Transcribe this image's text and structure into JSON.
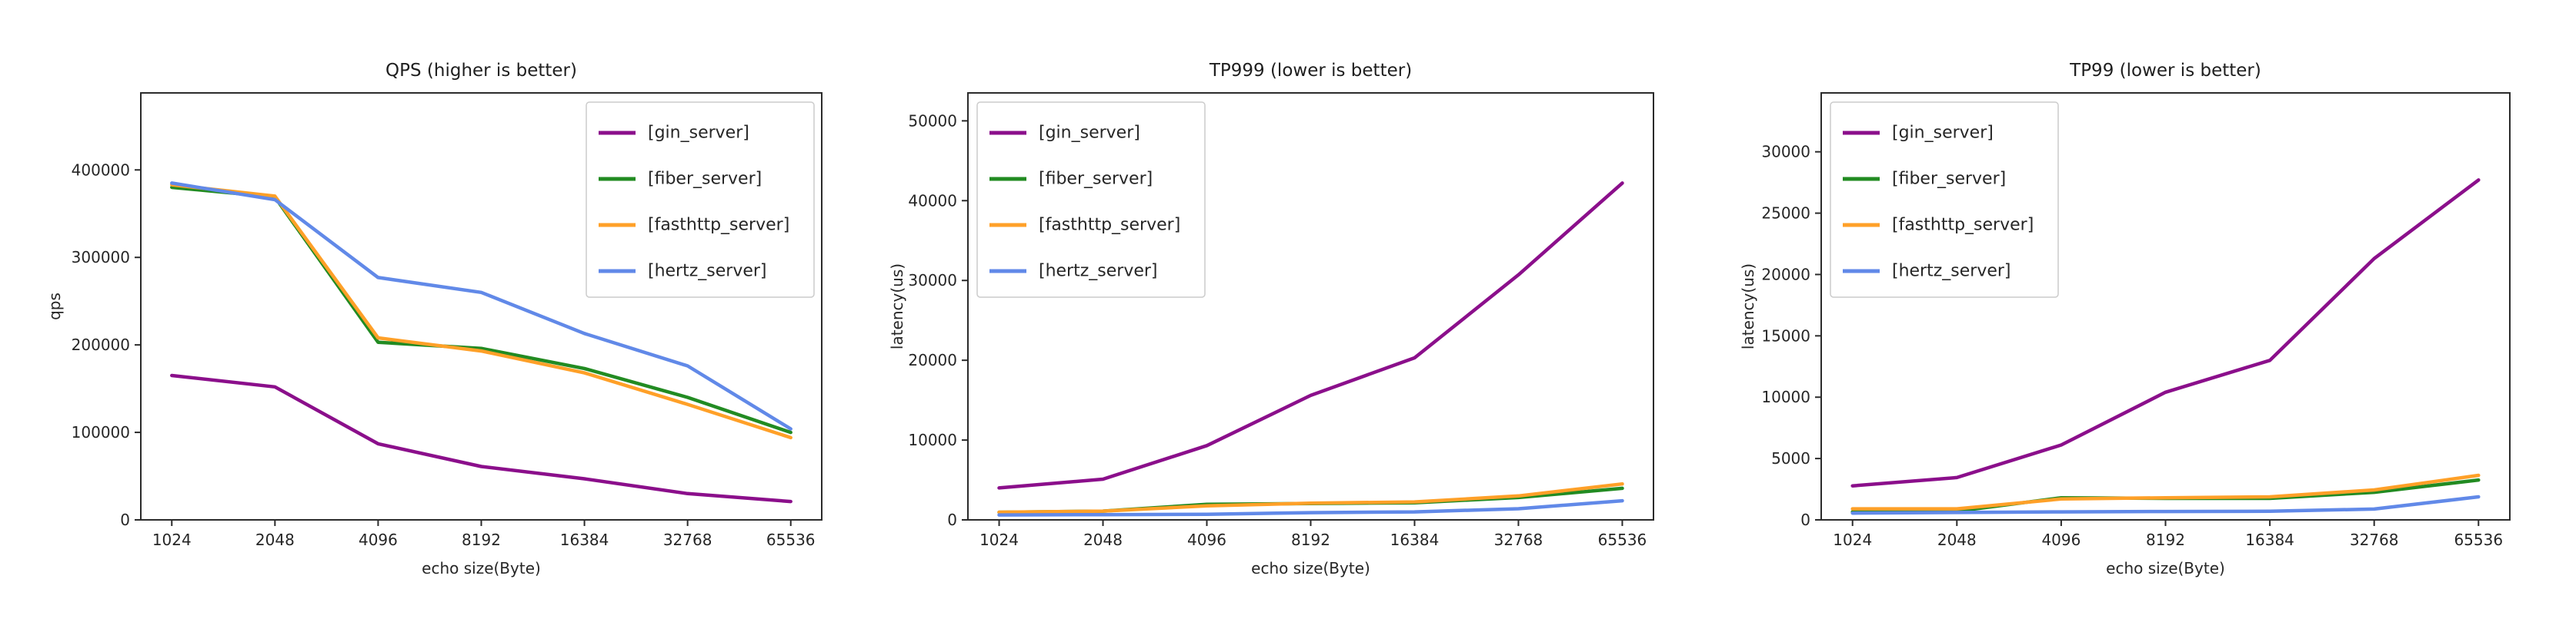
{
  "palette": {
    "gin_server": "#8B0F8B",
    "fiber_server": "#228B22",
    "fasthttp_server": "#FFA028",
    "hertz_server": "#6189E8",
    "spine": "#2b2b2b",
    "text": "#262626",
    "legend_border": "#cccccc",
    "background": "#ffffff"
  },
  "chart_data": [
    {
      "type": "line",
      "title": "QPS (higher is better)",
      "xlabel": "echo size(Byte)",
      "ylabel": "qps",
      "x_tick_labels": [
        "1024",
        "2048",
        "4096",
        "8192",
        "16384",
        "32768",
        "65536"
      ],
      "yticks": [
        0,
        100000,
        200000,
        300000,
        400000
      ],
      "ylim": [
        0,
        488000
      ],
      "grid": false,
      "legend_position": "top-right",
      "series": [
        {
          "name": "[gin_server]",
          "color_key": "gin_server",
          "values": [
            165000,
            152000,
            87000,
            61000,
            47000,
            30000,
            21000
          ]
        },
        {
          "name": "[fiber_server]",
          "color_key": "fiber_server",
          "values": [
            380000,
            369000,
            203000,
            196000,
            173000,
            140000,
            100000
          ]
        },
        {
          "name": "[fasthttp_server]",
          "color_key": "fasthttp_server",
          "values": [
            383000,
            370000,
            208000,
            193000,
            168000,
            132000,
            94000
          ]
        },
        {
          "name": "[hertz_server]",
          "color_key": "hertz_server",
          "values": [
            385000,
            366000,
            277000,
            260000,
            213000,
            176000,
            104000
          ]
        }
      ]
    },
    {
      "type": "line",
      "title": "TP999 (lower is better)",
      "xlabel": "echo size(Byte)",
      "ylabel": "latency(us)",
      "x_tick_labels": [
        "1024",
        "2048",
        "4096",
        "8192",
        "16384",
        "32768",
        "65536"
      ],
      "yticks": [
        0,
        10000,
        20000,
        30000,
        40000,
        50000
      ],
      "ylim": [
        0,
        53500
      ],
      "grid": false,
      "legend_position": "top-left",
      "series": [
        {
          "name": "[gin_server]",
          "color_key": "gin_server",
          "values": [
            4000,
            5100,
            9300,
            15600,
            20300,
            30700,
            42200
          ]
        },
        {
          "name": "[fiber_server]",
          "color_key": "fiber_server",
          "values": [
            950,
            1100,
            1950,
            2050,
            2150,
            2800,
            3950
          ]
        },
        {
          "name": "[fasthttp_server]",
          "color_key": "fasthttp_server",
          "values": [
            960,
            1100,
            1750,
            2100,
            2250,
            3000,
            4500
          ]
        },
        {
          "name": "[hertz_server]",
          "color_key": "hertz_server",
          "values": [
            620,
            650,
            700,
            900,
            1000,
            1400,
            2400
          ]
        }
      ]
    },
    {
      "type": "line",
      "title": "TP99 (lower is better)",
      "xlabel": "echo size(Byte)",
      "ylabel": "latency(us)",
      "x_tick_labels": [
        "1024",
        "2048",
        "4096",
        "8192",
        "16384",
        "32768",
        "65536"
      ],
      "yticks": [
        0,
        5000,
        10000,
        15000,
        20000,
        25000,
        30000
      ],
      "ylim": [
        0,
        34800
      ],
      "grid": false,
      "legend_position": "top-left",
      "series": [
        {
          "name": "[gin_server]",
          "color_key": "gin_server",
          "values": [
            2770,
            3450,
            6100,
            10400,
            13000,
            21300,
            27700
          ]
        },
        {
          "name": "[fiber_server]",
          "color_key": "fiber_server",
          "values": [
            650,
            700,
            1800,
            1750,
            1750,
            2250,
            3250
          ]
        },
        {
          "name": "[fasthttp_server]",
          "color_key": "fasthttp_server",
          "values": [
            900,
            900,
            1700,
            1800,
            1880,
            2440,
            3630
          ]
        },
        {
          "name": "[hertz_server]",
          "color_key": "hertz_server",
          "values": [
            550,
            600,
            650,
            680,
            700,
            880,
            1880
          ]
        }
      ]
    }
  ]
}
